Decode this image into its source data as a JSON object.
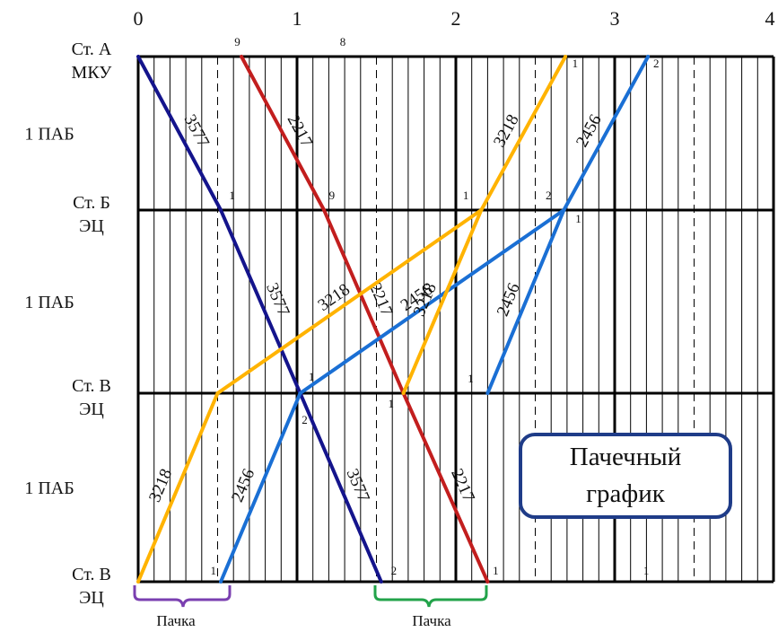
{
  "hour_labels": [
    "0",
    "1",
    "2",
    "3",
    "4"
  ],
  "stations": [
    {
      "name": "Ст. А",
      "type": "МКУ"
    },
    {
      "name": "Ст. Б",
      "type": "ЭЦ"
    },
    {
      "name": "Ст. В",
      "type": "ЭЦ"
    },
    {
      "name": "Ст. В",
      "type": "ЭЦ"
    }
  ],
  "block_labels": [
    "1 ПАБ",
    "1 ПАБ",
    "1 ПАБ"
  ],
  "legend_box": {
    "line1": "Пачечный",
    "line2": "график"
  },
  "packs": [
    {
      "label": "Пачка",
      "color": "#7a3fb0"
    },
    {
      "label": "Пачка",
      "color": "#22a34a"
    }
  ],
  "trains": [
    {
      "number": "3577",
      "color": "#14148c",
      "direction": "odd",
      "path": [
        {
          "st": 0,
          "t": 0
        },
        {
          "st": 1,
          "t": 0.52
        },
        {
          "st": 2,
          "t": 1.02
        },
        {
          "st": 3,
          "t": 1.53
        }
      ],
      "labels": [
        "3577",
        "3577",
        "3577"
      ]
    },
    {
      "number": "2217",
      "color": "#c21e1e",
      "direction": "odd",
      "path": [
        {
          "st": 0,
          "t": 0.65
        },
        {
          "st": 1,
          "t": 1.17
        },
        {
          "st": 2,
          "t": 1.67
        },
        {
          "st": 3,
          "t": 2.2
        }
      ],
      "labels": [
        "2217",
        "2217",
        "2217"
      ]
    },
    {
      "number": "3218",
      "color": "#ffb300",
      "direction": "even",
      "path": [
        {
          "st": 3,
          "t": 0
        },
        {
          "st": 2,
          "t": 0.5
        },
        {
          "st": 1,
          "t": 2.16
        },
        {
          "st": 0,
          "t": 2.69
        }
      ],
      "labels": [
        "3218",
        "3218",
        "3218"
      ]
    },
    {
      "number": "2456",
      "color": "#1a6fd4",
      "direction": "even",
      "path": [
        {
          "st": 3,
          "t": 0.52
        },
        {
          "st": 2,
          "t": 1.02
        },
        {
          "st": 1,
          "t": 2.68
        },
        {
          "st": 0,
          "t": 3.21
        }
      ],
      "labels": [
        "2456",
        "2456",
        "2456"
      ]
    }
  ],
  "segment_breaks": [
    {
      "from": {
        "st": 2,
        "t": 1.67
      },
      "to": {
        "st": 1,
        "t": 2.16
      },
      "train": "3218"
    },
    {
      "from": {
        "st": 2,
        "t": 2.2
      },
      "to": {
        "st": 1,
        "t": 2.68
      },
      "train": "2456"
    }
  ],
  "track_marks": [
    {
      "text": "9",
      "st": 0,
      "t": 0.64,
      "dx": -6,
      "dy": -12
    },
    {
      "text": "8",
      "st": 0,
      "t": 1.27,
      "dx": 0,
      "dy": -12
    },
    {
      "text": "1",
      "st": 0,
      "t": 2.71,
      "dx": 4,
      "dy": 12
    },
    {
      "text": "2",
      "st": 0,
      "t": 3.22,
      "dx": 4,
      "dy": 12
    },
    {
      "text": "1",
      "st": 1,
      "t": 0.55,
      "dx": 4,
      "dy": -12
    },
    {
      "text": "9",
      "st": 1,
      "t": 1.19,
      "dx": 2,
      "dy": -12
    },
    {
      "text": "1",
      "st": 1,
      "t": 2.09,
      "dx": -8,
      "dy": -12
    },
    {
      "text": "2",
      "st": 1,
      "t": 2.61,
      "dx": -8,
      "dy": -12
    },
    {
      "text": "1",
      "st": 1,
      "t": 2.73,
      "dx": 4,
      "dy": 14
    },
    {
      "text": "1",
      "st": 2,
      "t": 1.05,
      "dx": 4,
      "dy": -14
    },
    {
      "text": "1",
      "st": 2,
      "t": 2.12,
      "dx": -8,
      "dy": -12
    },
    {
      "text": "2",
      "st": 2,
      "t": 1.03,
      "dx": 0,
      "dy": 34
    },
    {
      "text": "1",
      "st": 2,
      "t": 1.63,
      "dx": -10,
      "dy": 16
    },
    {
      "text": "1",
      "st": 3,
      "t": 0.5,
      "dx": -8,
      "dy": -8
    },
    {
      "text": "2",
      "st": 3,
      "t": 1.58,
      "dx": 2,
      "dy": -8
    },
    {
      "text": "1",
      "st": 3,
      "t": 2.21,
      "dx": 4,
      "dy": -8
    },
    {
      "text": "1",
      "st": 3,
      "t": 3.18,
      "dx": 0,
      "dy": -8
    }
  ]
}
